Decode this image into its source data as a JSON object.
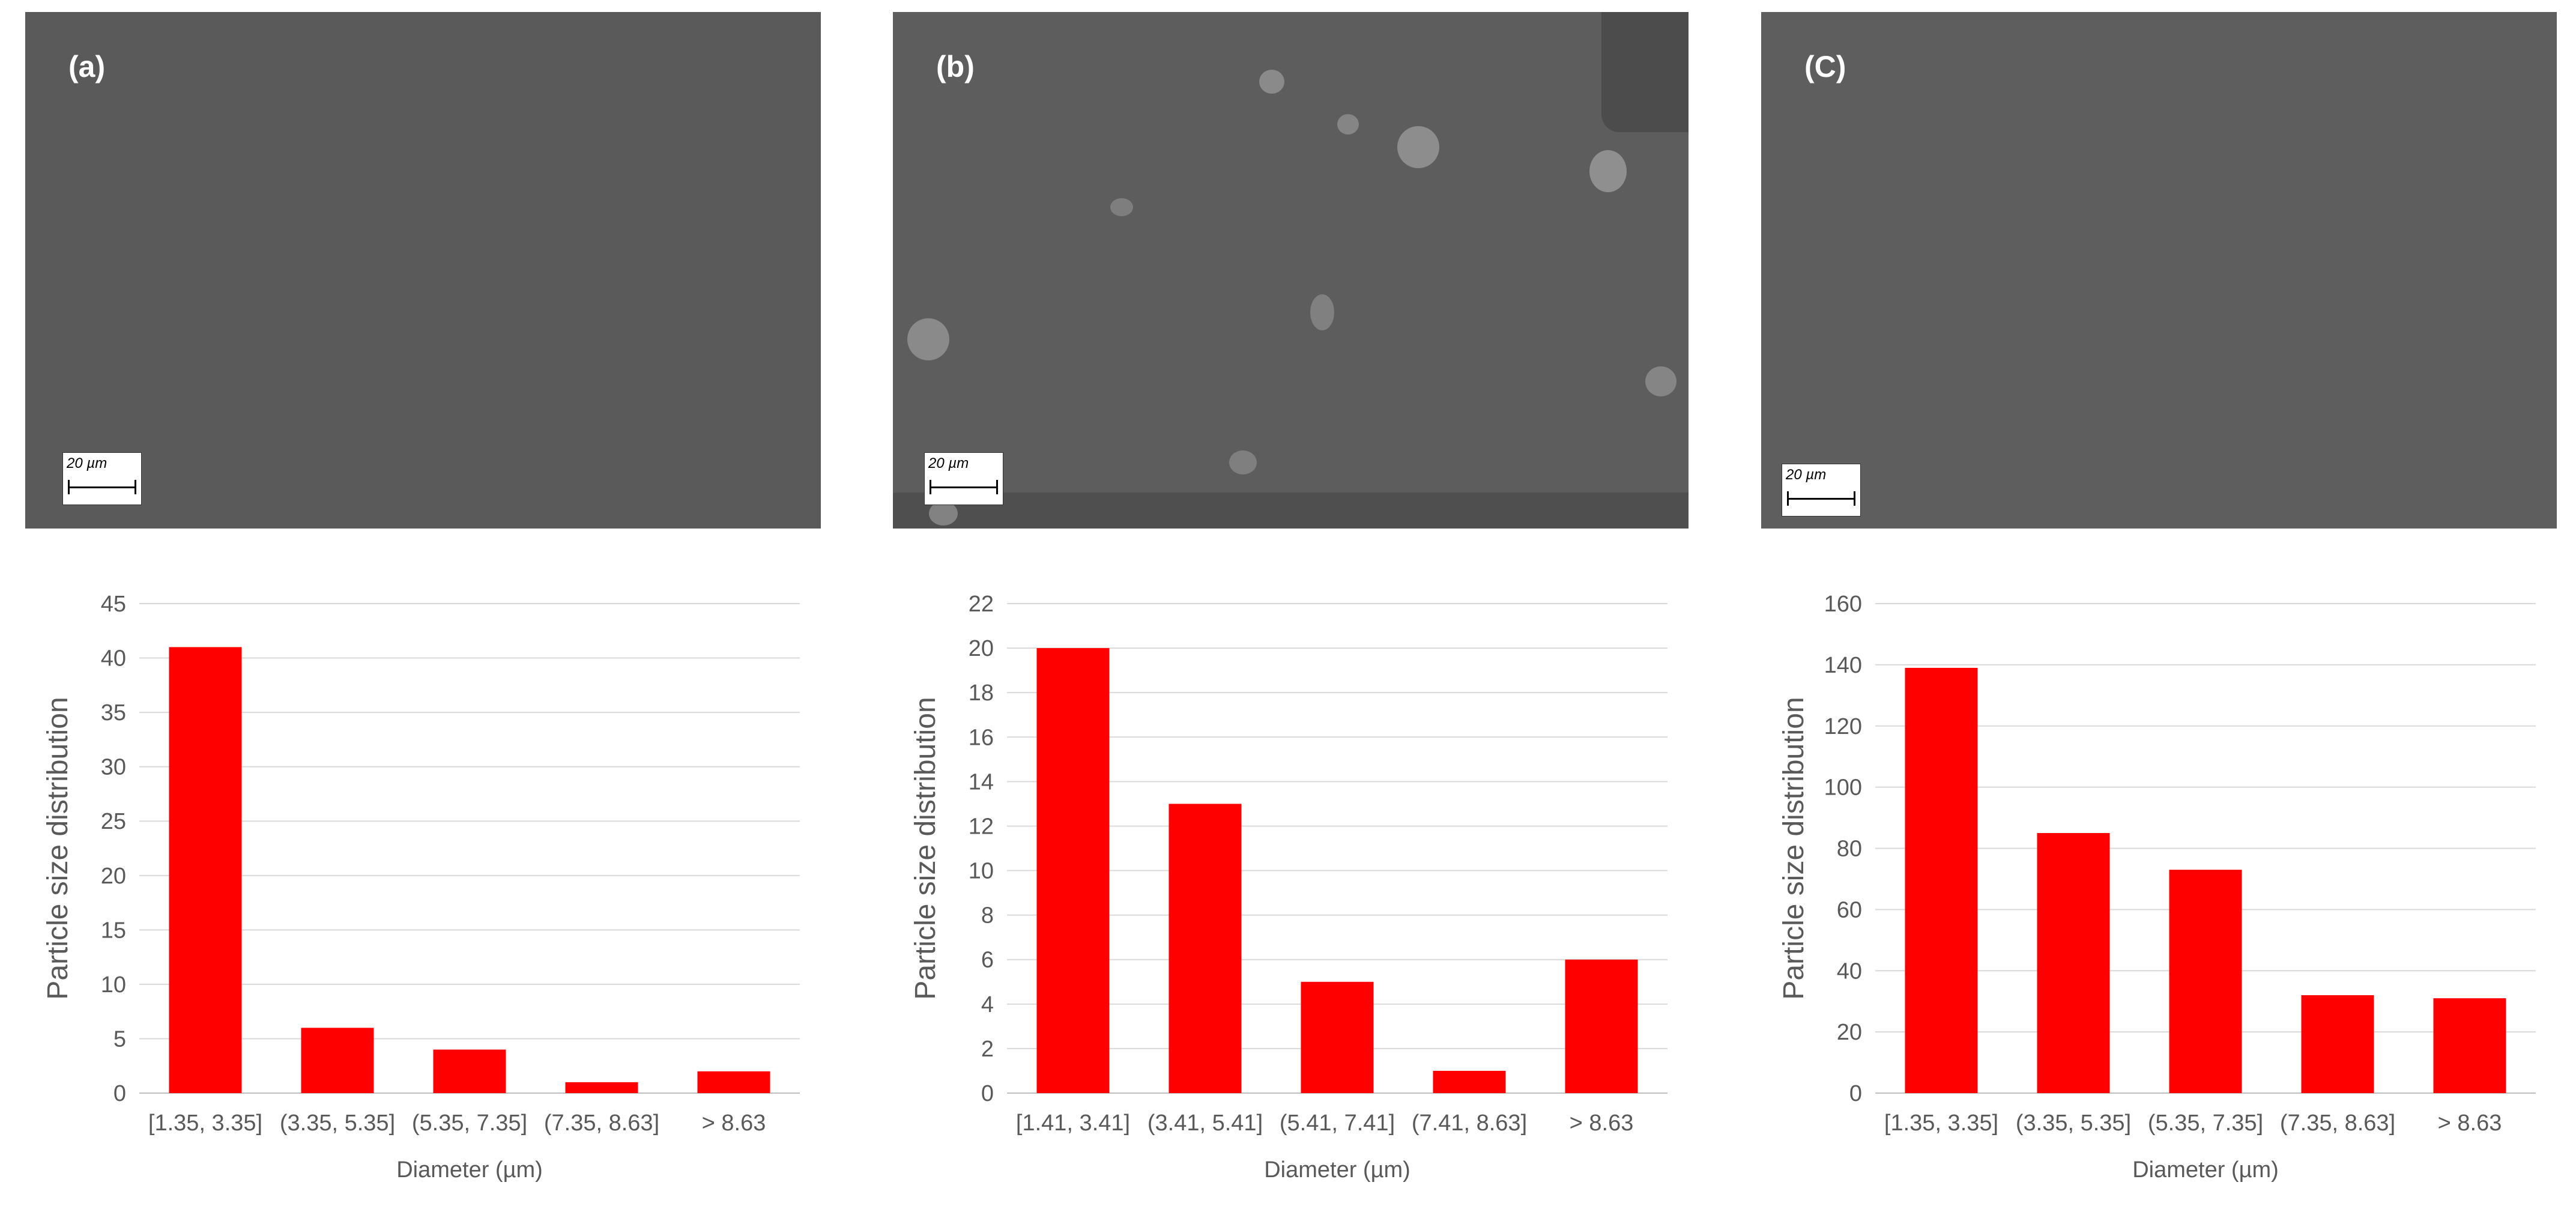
{
  "micrographs": [
    {
      "label": "(a)",
      "scale_label": "20 µm"
    },
    {
      "label": "(b)",
      "scale_label": "20 µm"
    },
    {
      "label": "(C)",
      "scale_label": "20 µm"
    }
  ],
  "colors": {
    "bar": "#ff0000",
    "grid": "#d9d9d9",
    "axis_text": "#595959",
    "micrograph_bg": "#5a5a5a"
  },
  "chart_data": [
    {
      "type": "bar",
      "title": "",
      "xlabel": "Diameter (µm)",
      "ylabel": "Particle size distribution",
      "categories": [
        "[1.35, 3.35]",
        "(3.35, 5.35]",
        "(5.35, 7.35]",
        "(7.35, 8.63]",
        "> 8.63"
      ],
      "values": [
        41,
        6,
        4,
        1,
        2
      ],
      "ylim": [
        0,
        45
      ],
      "yticks": [
        "0",
        "5",
        "10",
        "15",
        "20",
        "25",
        "30",
        "35",
        "40",
        "45"
      ],
      "grid": true,
      "legend": "none"
    },
    {
      "type": "bar",
      "title": "",
      "xlabel": "Diameter (µm)",
      "ylabel": "Particle size distribution",
      "categories": [
        "[1.41, 3.41]",
        "(3.41, 5.41]",
        "(5.41, 7.41]",
        "(7.41, 8.63]",
        "> 8.63"
      ],
      "values": [
        20,
        13,
        5,
        1,
        6
      ],
      "ylim": [
        0,
        22
      ],
      "yticks": [
        "0",
        "2",
        "4",
        "6",
        "8",
        "10",
        "12",
        "14",
        "16",
        "18",
        "20",
        "22"
      ],
      "grid": true,
      "legend": "none"
    },
    {
      "type": "bar",
      "title": "",
      "xlabel": "Diameter (µm)",
      "ylabel": "Particle size distribution",
      "categories": [
        "[1.35, 3.35]",
        "(3.35, 5.35]",
        "(5.35, 7.35]",
        "(7.35, 8.63]",
        "> 8.63"
      ],
      "values": [
        139,
        85,
        73,
        32,
        31
      ],
      "ylim": [
        0,
        160
      ],
      "yticks": [
        "0",
        "20",
        "40",
        "60",
        "80",
        "100",
        "120",
        "140",
        "160"
      ],
      "grid": true,
      "legend": "none"
    }
  ]
}
